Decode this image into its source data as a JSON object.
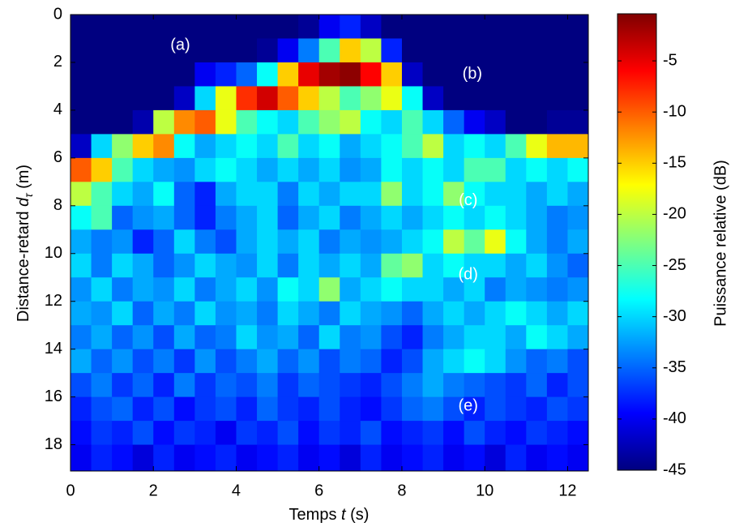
{
  "chart_data": {
    "type": "heatmap",
    "xlabel": [
      "Temps ",
      "t",
      " (s)"
    ],
    "ylabel": [
      "Distance-retard ",
      "d",
      "τ",
      " (m)"
    ],
    "zlabel": "Puissance relative (dB)",
    "colormap": "jet",
    "xlim": [
      0,
      12.5
    ],
    "ylim": [
      19.1,
      0
    ],
    "zlim": [
      -45,
      -0.4
    ],
    "xticks": [
      0,
      2,
      4,
      6,
      8,
      10,
      12
    ],
    "yticks": [
      0,
      2,
      4,
      6,
      8,
      10,
      12,
      14,
      16,
      18
    ],
    "zticks": [
      -5,
      -10,
      -15,
      -20,
      -25,
      -30,
      -35,
      -40,
      -45
    ],
    "x_edges": [
      0,
      0.5,
      1,
      1.5,
      2,
      2.5,
      3,
      3.5,
      4,
      4.5,
      5,
      5.5,
      6,
      6.5,
      7,
      7.5,
      8,
      8.5,
      9,
      9.5,
      10,
      10.5,
      11,
      11.5,
      12,
      12.5
    ],
    "y_edges": [
      0,
      1,
      2,
      3,
      4,
      5,
      6,
      7,
      8,
      9,
      10,
      11,
      12,
      13,
      14,
      15,
      16,
      17,
      18,
      19.1
    ],
    "z": [
      [
        -45,
        -45,
        -45,
        -45,
        -45,
        -45,
        -45,
        -45,
        -45,
        -45,
        -45,
        -44,
        -40,
        -38,
        -42,
        -45,
        -45,
        -45,
        -45,
        -45,
        -45,
        -45,
        -45,
        -45,
        -45
      ],
      [
        -45,
        -45,
        -45,
        -45,
        -45,
        -45,
        -45,
        -45,
        -45,
        -44,
        -40,
        -34,
        -25,
        -15,
        -20,
        -38,
        -45,
        -45,
        -45,
        -45,
        -45,
        -45,
        -45,
        -45,
        -45
      ],
      [
        -45,
        -45,
        -45,
        -45,
        -45,
        -45,
        -40,
        -38,
        -35,
        -28,
        -15,
        -5,
        -2,
        -1,
        -6,
        -15,
        -42,
        -45,
        -45,
        -45,
        -45,
        -45,
        -45,
        -45,
        -45
      ],
      [
        -45,
        -45,
        -45,
        -45,
        -45,
        -42,
        -30,
        -18,
        -8,
        -4,
        -10,
        -15,
        -20,
        -25,
        -22,
        -18,
        -28,
        -42,
        -45,
        -45,
        -45,
        -45,
        -45,
        -45,
        -45
      ],
      [
        -45,
        -45,
        -45,
        -43,
        -20,
        -12,
        -10,
        -18,
        -25,
        -28,
        -30,
        -25,
        -22,
        -20,
        -28,
        -30,
        -25,
        -30,
        -35,
        -40,
        -42,
        -45,
        -45,
        -44,
        -44
      ],
      [
        -42,
        -30,
        -22,
        -15,
        -12,
        -28,
        -32,
        -30,
        -28,
        -30,
        -25,
        -30,
        -28,
        -32,
        -30,
        -28,
        -25,
        -20,
        -30,
        -28,
        -30,
        -25,
        -18,
        -14,
        -14
      ],
      [
        -10,
        -15,
        -25,
        -30,
        -32,
        -33,
        -30,
        -28,
        -30,
        -32,
        -30,
        -32,
        -30,
        -33,
        -32,
        -28,
        -30,
        -28,
        -30,
        -25,
        -25,
        -30,
        -28,
        -30,
        -28
      ],
      [
        -20,
        -25,
        -30,
        -32,
        -28,
        -35,
        -38,
        -32,
        -30,
        -30,
        -34,
        -30,
        -32,
        -30,
        -30,
        -22,
        -30,
        -28,
        -22,
        -28,
        -30,
        -30,
        -32,
        -30,
        -32
      ],
      [
        -28,
        -25,
        -35,
        -33,
        -32,
        -35,
        -38,
        -34,
        -32,
        -30,
        -35,
        -32,
        -30,
        -34,
        -32,
        -30,
        -32,
        -30,
        -28,
        -30,
        -28,
        -30,
        -32,
        -34,
        -33
      ],
      [
        -32,
        -34,
        -33,
        -38,
        -35,
        -30,
        -34,
        -36,
        -32,
        -30,
        -32,
        -30,
        -34,
        -32,
        -33,
        -32,
        -30,
        -28,
        -20,
        -24,
        -18,
        -28,
        -32,
        -34,
        -32
      ],
      [
        -30,
        -34,
        -30,
        -32,
        -35,
        -33,
        -30,
        -32,
        -33,
        -30,
        -34,
        -30,
        -32,
        -30,
        -32,
        -24,
        -22,
        -30,
        -28,
        -30,
        -30,
        -32,
        -30,
        -33,
        -35
      ],
      [
        -33,
        -30,
        -34,
        -32,
        -33,
        -30,
        -34,
        -32,
        -30,
        -33,
        -28,
        -30,
        -22,
        -32,
        -30,
        -28,
        -30,
        -30,
        -32,
        -30,
        -34,
        -32,
        -33,
        -34,
        -33
      ],
      [
        -32,
        -33,
        -30,
        -35,
        -32,
        -34,
        -30,
        -33,
        -32,
        -34,
        -30,
        -32,
        -34,
        -30,
        -32,
        -33,
        -35,
        -32,
        -30,
        -32,
        -30,
        -28,
        -30,
        -32,
        -30
      ],
      [
        -34,
        -32,
        -35,
        -33,
        -36,
        -32,
        -35,
        -34,
        -30,
        -33,
        -32,
        -35,
        -30,
        -34,
        -33,
        -36,
        -38,
        -34,
        -32,
        -30,
        -30,
        -32,
        -28,
        -30,
        -32
      ],
      [
        -32,
        -35,
        -33,
        -36,
        -34,
        -37,
        -33,
        -36,
        -34,
        -32,
        -35,
        -33,
        -36,
        -34,
        -35,
        -38,
        -36,
        -32,
        -30,
        -28,
        -30,
        -33,
        -35,
        -34,
        -36
      ],
      [
        -36,
        -34,
        -37,
        -35,
        -38,
        -34,
        -37,
        -35,
        -36,
        -34,
        -37,
        -35,
        -36,
        -37,
        -38,
        -36,
        -34,
        -32,
        -34,
        -35,
        -36,
        -37,
        -35,
        -38,
        -36
      ],
      [
        -38,
        -36,
        -35,
        -38,
        -36,
        -39,
        -37,
        -36,
        -38,
        -35,
        -37,
        -38,
        -36,
        -38,
        -39,
        -37,
        -35,
        -34,
        -36,
        -38,
        -36,
        -37,
        -38,
        -36,
        -37
      ],
      [
        -39,
        -37,
        -38,
        -36,
        -39,
        -37,
        -38,
        -40,
        -37,
        -38,
        -36,
        -39,
        -37,
        -38,
        -36,
        -39,
        -38,
        -37,
        -39,
        -36,
        -38,
        -39,
        -37,
        -38,
        -39
      ],
      [
        -40,
        -38,
        -39,
        -41,
        -38,
        -40,
        -39,
        -38,
        -40,
        -39,
        -38,
        -40,
        -39,
        -41,
        -38,
        -40,
        -39,
        -38,
        -40,
        -39,
        -41,
        -38,
        -40,
        -39,
        -40
      ]
    ],
    "annotations": [
      {
        "text": "(a)",
        "x": 2.65,
        "y": 1.3
      },
      {
        "text": "(b)",
        "x": 9.7,
        "y": 2.5
      },
      {
        "text": "(c)",
        "x": 9.6,
        "y": 7.8
      },
      {
        "text": "(d)",
        "x": 9.6,
        "y": 10.9
      },
      {
        "text": "(e)",
        "x": 9.6,
        "y": 16.4
      }
    ]
  }
}
